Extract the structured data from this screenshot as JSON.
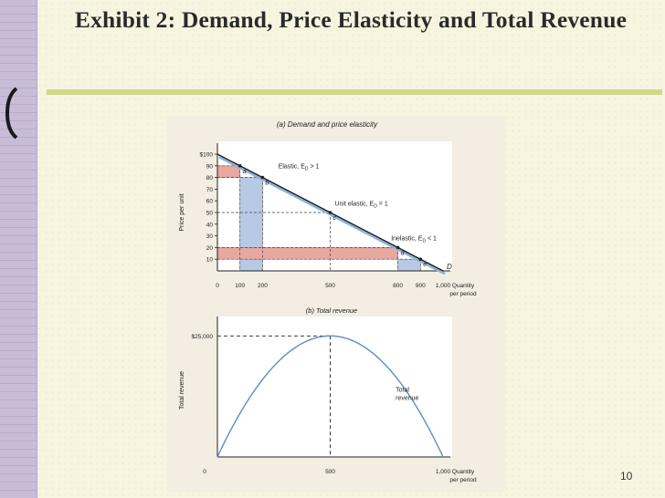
{
  "slide": {
    "title": "Exhibit 2: Demand, Price Elasticity and Total Revenue",
    "page_number": "10"
  },
  "chart_data": [
    {
      "type": "line",
      "title": "(a) Demand and price elasticity",
      "xlabel": "Quantity per period",
      "ylabel": "Price per unit",
      "x_ticks": [
        0,
        100,
        200,
        500,
        800,
        900,
        1000
      ],
      "x_tick_labels": [
        "0",
        "100",
        "200",
        "500",
        "800",
        "900",
        "1,000"
      ],
      "y_ticks": [
        10,
        20,
        30,
        40,
        50,
        60,
        70,
        80,
        90,
        100
      ],
      "y_tick_labels": [
        "10",
        "20",
        "30",
        "40",
        "50",
        "60",
        "70",
        "80",
        "90",
        "$100"
      ],
      "xlim": [
        0,
        1000
      ],
      "ylim": [
        0,
        100
      ],
      "series": [
        {
          "name": "D",
          "x": [
            0,
            1000
          ],
          "y": [
            100,
            0
          ]
        }
      ],
      "points": [
        {
          "label": "a",
          "x": 100,
          "y": 90
        },
        {
          "label": "b",
          "x": 200,
          "y": 80
        },
        {
          "label": "c",
          "x": 500,
          "y": 50
        },
        {
          "label": "d",
          "x": 800,
          "y": 20
        },
        {
          "label": "e",
          "x": 900,
          "y": 10
        }
      ],
      "shaded_regions": [
        {
          "kind": "price-change",
          "x": [
            0,
            100
          ],
          "y": [
            80,
            90
          ]
        },
        {
          "kind": "quantity-change",
          "x": [
            100,
            200
          ],
          "y": [
            0,
            80
          ]
        },
        {
          "kind": "price-change",
          "x": [
            0,
            800
          ],
          "y": [
            10,
            20
          ]
        },
        {
          "kind": "quantity-change",
          "x": [
            800,
            900
          ],
          "y": [
            0,
            10
          ]
        }
      ],
      "annotations": [
        {
          "text": "Elastic, E",
          "sub": "D",
          "rel": " > 1",
          "x": 270,
          "y": 88
        },
        {
          "text": "Unit elastic, E",
          "sub": "D",
          "rel": " = 1",
          "x": 520,
          "y": 56
        },
        {
          "text": "Inelastic, E",
          "sub": "D",
          "rel": " < 1",
          "x": 770,
          "y": 26
        }
      ],
      "colors": {
        "demand": "#1a1a1a",
        "highlight": "#8fb3d9",
        "price_box": "#e8a8a0",
        "qty_box": "#b7c9e4"
      }
    },
    {
      "type": "line",
      "title": "(b) Total revenue",
      "xlabel": "Quantity per period",
      "ylabel": "Total revenue",
      "x_ticks": [
        0,
        500,
        1000
      ],
      "x_tick_labels": [
        "0",
        "500",
        "1,000"
      ],
      "y_ticks": [
        25000
      ],
      "y_tick_labels": [
        "$25,000"
      ],
      "xlim": [
        0,
        1000
      ],
      "ylim": [
        0,
        27500
      ],
      "series": [
        {
          "name": "Total revenue",
          "x": [
            0,
            100,
            200,
            300,
            400,
            500,
            600,
            700,
            800,
            900,
            1000
          ],
          "y": [
            0,
            9000,
            16000,
            21000,
            24000,
            25000,
            24000,
            21000,
            16000,
            9000,
            0
          ]
        }
      ],
      "colors": {
        "curve": "#5b8fc4"
      }
    }
  ]
}
